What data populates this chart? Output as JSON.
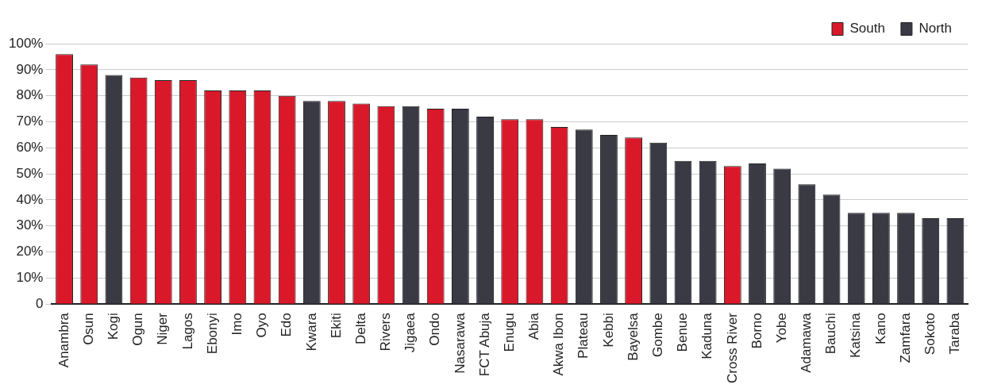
{
  "chart_data": {
    "type": "bar",
    "categories": [
      "Anambra",
      "Osun",
      "Kogi",
      "Ogun",
      "Niger",
      "Lagos",
      "Ebonyi",
      "Imo",
      "Oyo",
      "Edo",
      "Kwara",
      "Ekiti",
      "Delta",
      "Rivers",
      "Jigaea",
      "Ondo",
      "Nasarawa",
      "FCT Abuja",
      "Enugu",
      "Abia",
      "Akwa Ibon",
      "Plateau",
      "Kebbi",
      "Bayelsa",
      "Gombe",
      "Benue",
      "Kaduna",
      "Cross River",
      "Borno",
      "Yobe",
      "Adamawa",
      "Bauchi",
      "Katsina",
      "Kano",
      "Zamfara",
      "Sokoto",
      "Taraba"
    ],
    "series": [
      {
        "name": "South",
        "color": "#d9192a",
        "values": [
          96,
          92,
          null,
          87,
          86,
          86,
          82,
          82,
          82,
          80,
          null,
          78,
          77,
          76,
          null,
          75,
          null,
          null,
          71,
          71,
          68,
          null,
          null,
          64,
          null,
          null,
          null,
          53,
          null,
          null,
          null,
          null,
          null,
          null,
          null,
          null,
          null
        ]
      },
      {
        "name": "North",
        "color": "#3a3a45",
        "values": [
          null,
          null,
          88,
          null,
          null,
          null,
          null,
          null,
          null,
          null,
          78,
          null,
          null,
          null,
          76,
          null,
          75,
          72,
          null,
          null,
          null,
          67,
          65,
          null,
          62,
          55,
          55,
          null,
          54,
          52,
          46,
          42,
          35,
          35,
          35,
          33,
          33
        ]
      }
    ],
    "ylim": [
      0,
      100
    ],
    "yticks": [
      0,
      {
        "value": 10,
        "label": "10%"
      },
      {
        "value": 20,
        "label": "20%"
      },
      {
        "value": 30,
        "label": "30%"
      },
      {
        "value": 40,
        "label": "40%"
      },
      {
        "value": 50,
        "label": "50%"
      },
      {
        "value": 60,
        "label": "60%"
      },
      {
        "value": 70,
        "label": "70%"
      },
      {
        "value": 80,
        "label": "80%"
      },
      {
        "value": 90,
        "label": "90%"
      },
      {
        "value": 100,
        "label": "100%"
      }
    ],
    "grid": "y",
    "legend": "top right"
  }
}
